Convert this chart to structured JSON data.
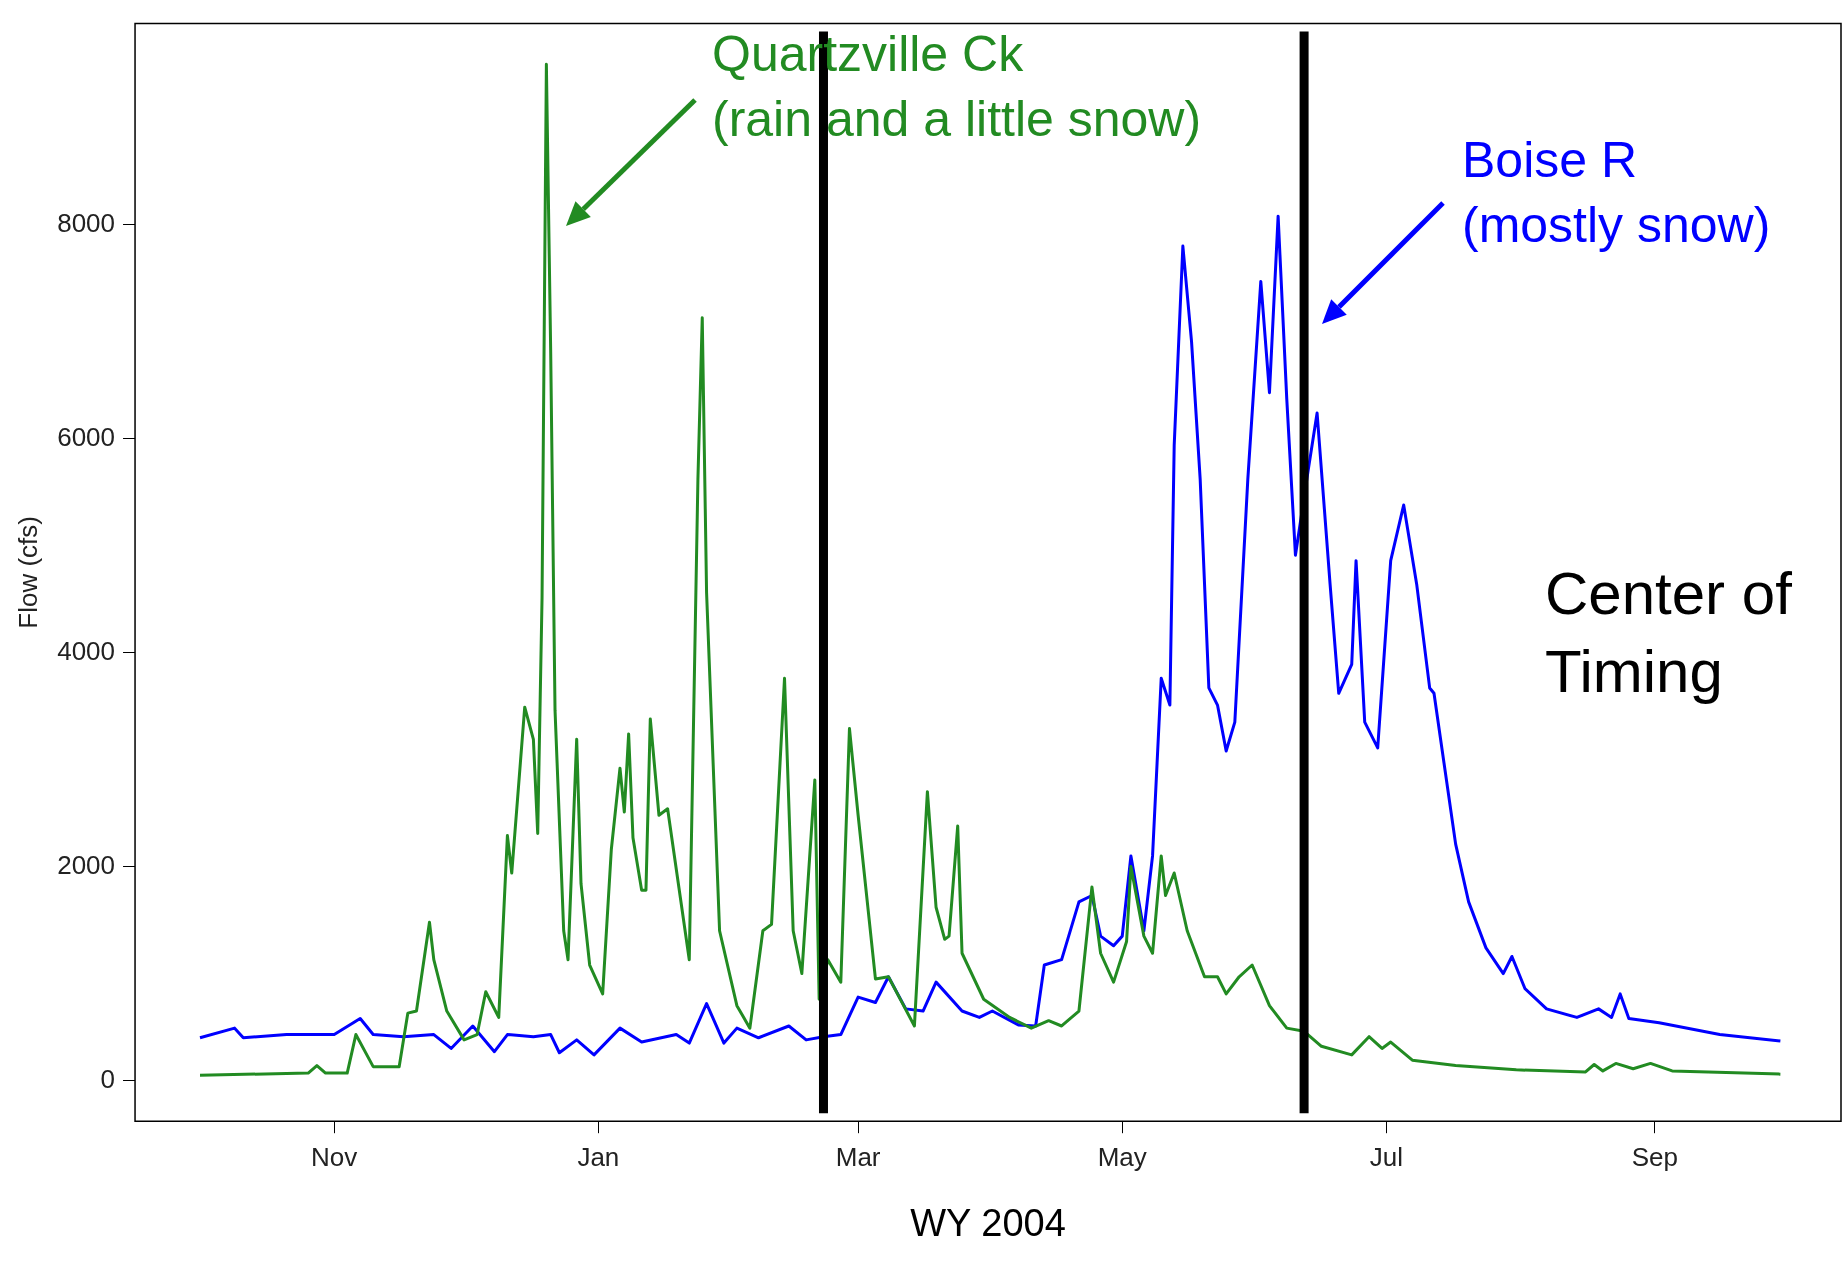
{
  "chart_data": {
    "type": "line",
    "xlabel": "WY 2004",
    "ylabel": "Flow (cfs)",
    "xlim": [
      "2003-09-16",
      "2004-10-14"
    ],
    "ylim": [
      -380,
      9880
    ],
    "xticks": [
      {
        "value": "2003-11-01",
        "label": "Nov"
      },
      {
        "value": "2004-01-01",
        "label": "Jan"
      },
      {
        "value": "2004-03-01",
        "label": "Mar"
      },
      {
        "value": "2004-05-01",
        "label": "May"
      },
      {
        "value": "2004-07-01",
        "label": "Jul"
      },
      {
        "value": "2004-09-01",
        "label": "Sep"
      }
    ],
    "yticks": [
      0,
      2000,
      4000,
      6000,
      8000
    ],
    "series": [
      {
        "name": "Quartzville Ck",
        "color": "#228b22",
        "x": [
          "2003-10-01",
          "2003-10-26",
          "2003-10-28",
          "2003-10-30",
          "2003-11-04",
          "2003-11-06",
          "2003-11-10",
          "2003-11-16",
          "2003-11-18",
          "2003-11-20",
          "2003-11-23",
          "2003-11-24",
          "2003-11-27",
          "2003-12-01",
          "2003-12-04",
          "2003-12-06",
          "2003-12-09",
          "2003-12-11",
          "2003-12-12",
          "2003-12-15",
          "2003-12-17",
          "2003-12-18",
          "2003-12-19",
          "2003-12-20",
          "2003-12-21",
          "2003-12-22",
          "2003-12-24",
          "2003-12-25",
          "2003-12-27",
          "2003-12-28",
          "2003-12-30",
          "2004-01-02",
          "2004-01-04",
          "2004-01-06",
          "2004-01-07",
          "2004-01-08",
          "2004-01-09",
          "2004-01-11",
          "2004-01-12",
          "2004-01-13",
          "2004-01-15",
          "2004-01-17",
          "2004-01-22",
          "2004-01-24",
          "2004-01-25",
          "2004-01-26",
          "2004-01-29",
          "2004-02-02",
          "2004-02-05",
          "2004-02-08",
          "2004-02-10",
          "2004-02-13",
          "2004-02-15",
          "2004-02-17",
          "2004-02-20",
          "2004-02-21",
          "2004-02-23",
          "2004-02-26",
          "2004-02-28",
          "2004-03-01",
          "2004-03-05",
          "2004-03-08",
          "2004-03-14",
          "2004-03-17",
          "2004-03-19",
          "2004-03-21",
          "2004-03-22",
          "2004-03-24",
          "2004-03-25",
          "2004-03-30",
          "2004-04-05",
          "2004-04-10",
          "2004-04-14",
          "2004-04-17",
          "2004-04-21",
          "2004-04-24",
          "2004-04-26",
          "2004-04-29",
          "2004-05-02",
          "2004-05-03",
          "2004-05-06",
          "2004-05-08",
          "2004-05-10",
          "2004-05-11",
          "2004-05-13",
          "2004-05-16",
          "2004-05-20",
          "2004-05-23",
          "2004-05-25",
          "2004-05-28",
          "2004-05-31",
          "2004-06-04",
          "2004-06-08",
          "2004-06-12",
          "2004-06-16",
          "2004-06-23",
          "2004-06-27",
          "2004-06-30",
          "2004-07-02",
          "2004-07-07",
          "2004-07-17",
          "2004-07-31",
          "2004-08-16",
          "2004-08-18",
          "2004-08-20",
          "2004-08-23",
          "2004-08-27",
          "2004-08-31",
          "2004-09-05",
          "2004-09-30"
        ],
        "values": [
          50,
          70,
          140,
          70,
          70,
          430,
          130,
          130,
          630,
          650,
          1480,
          1130,
          650,
          380,
          430,
          830,
          590,
          2290,
          1940,
          3490,
          3190,
          2310,
          4510,
          9500,
          6800,
          3460,
          1400,
          1130,
          3190,
          1840,
          1080,
          810,
          2160,
          2920,
          2510,
          3240,
          2270,
          1780,
          1780,
          3380,
          2480,
          2540,
          1130,
          5620,
          7130,
          4560,
          1400,
          700,
          490,
          1400,
          1460,
          3760,
          1400,
          1000,
          2810,
          760,
          1130,
          920,
          3290,
          2480,
          950,
          970,
          510,
          2700,
          1620,
          1320,
          1350,
          2380,
          1190,
          760,
          590,
          490,
          560,
          510,
          650,
          1810,
          1190,
          920,
          1300,
          2000,
          1350,
          1190,
          2100,
          1730,
          1940,
          1400,
          970,
          970,
          810,
          970,
          1080,
          700,
          490,
          460,
          320,
          240,
          410,
          300,
          360,
          190,
          140,
          100,
          80,
          150,
          90,
          160,
          110,
          160,
          90,
          60
        ]
      },
      {
        "name": "Boise R",
        "color": "#0000ff",
        "x": [
          "2003-10-01",
          "2003-10-09",
          "2003-10-11",
          "2003-10-21",
          "2003-11-01",
          "2003-11-07",
          "2003-11-10",
          "2003-11-17",
          "2003-11-24",
          "2003-11-28",
          "2003-12-03",
          "2003-12-08",
          "2003-12-11",
          "2003-12-17",
          "2003-12-21",
          "2003-12-23",
          "2003-12-27",
          "2003-12-31",
          "2004-01-06",
          "2004-01-11",
          "2004-01-19",
          "2004-01-22",
          "2004-01-26",
          "2004-01-30",
          "2004-02-02",
          "2004-02-07",
          "2004-02-14",
          "2004-02-18",
          "2004-02-22",
          "2004-02-26",
          "2004-03-01",
          "2004-03-05",
          "2004-03-08",
          "2004-03-12",
          "2004-03-16",
          "2004-03-19",
          "2004-03-25",
          "2004-03-29",
          "2004-04-01",
          "2004-04-07",
          "2004-04-11",
          "2004-04-13",
          "2004-04-17",
          "2004-04-21",
          "2004-04-24",
          "2004-04-26",
          "2004-04-29",
          "2004-05-01",
          "2004-05-03",
          "2004-05-06",
          "2004-05-08",
          "2004-05-10",
          "2004-05-12",
          "2004-05-13",
          "2004-05-15",
          "2004-05-17",
          "2004-05-19",
          "2004-05-21",
          "2004-05-23",
          "2004-05-25",
          "2004-05-27",
          "2004-05-30",
          "2004-06-02",
          "2004-06-04",
          "2004-06-06",
          "2004-06-08",
          "2004-06-10",
          "2004-06-13",
          "2004-06-15",
          "2004-06-18",
          "2004-06-20",
          "2004-06-23",
          "2004-06-24",
          "2004-06-26",
          "2004-06-29",
          "2004-07-02",
          "2004-07-05",
          "2004-07-08",
          "2004-07-11",
          "2004-07-12",
          "2004-07-17",
          "2004-07-20",
          "2004-07-24",
          "2004-07-28",
          "2004-07-30",
          "2004-08-02",
          "2004-08-07",
          "2004-08-14",
          "2004-08-19",
          "2004-08-22",
          "2004-08-24",
          "2004-08-26",
          "2004-09-02",
          "2004-09-16",
          "2004-09-30"
        ],
        "values": [
          400,
          490,
          400,
          430,
          430,
          580,
          430,
          410,
          430,
          300,
          510,
          270,
          430,
          410,
          430,
          260,
          380,
          240,
          490,
          360,
          430,
          350,
          720,
          350,
          490,
          400,
          510,
          380,
          410,
          430,
          780,
          730,
          970,
          670,
          650,
          920,
          650,
          590,
          650,
          520,
          510,
          1080,
          1130,
          1670,
          1730,
          1350,
          1260,
          1350,
          2100,
          1400,
          2100,
          3760,
          3510,
          5940,
          7800,
          6910,
          5620,
          3670,
          3510,
          3080,
          3350,
          5620,
          7470,
          6430,
          8080,
          6370,
          4910,
          5720,
          6240,
          4640,
          3620,
          3890,
          4860,
          3350,
          3110,
          4860,
          5380,
          4640,
          3670,
          3620,
          2210,
          1670,
          1240,
          1000,
          1160,
          860,
          670,
          590,
          670,
          590,
          810,
          580,
          540,
          430,
          370
        ]
      }
    ],
    "ref_lines": [
      {
        "axis": "x",
        "value": "2004-02-22",
        "color": "#000000"
      },
      {
        "axis": "x",
        "value": "2004-06-12",
        "color": "#000000"
      }
    ],
    "annotations": [
      "(rain and a little snow)",
      "(mostly snow)",
      "Center of Timing"
    ]
  }
}
